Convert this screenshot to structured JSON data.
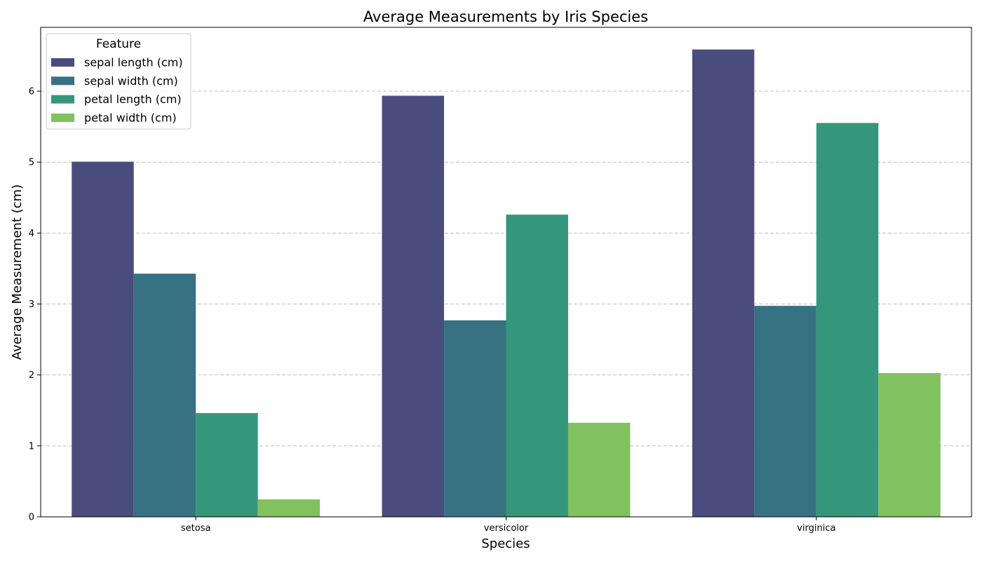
{
  "chart_data": {
    "type": "bar",
    "title": "Average Measurements by Iris Species",
    "xlabel": "Species",
    "ylabel": "Average Measurement (cm)",
    "categories": [
      "setosa",
      "versicolor",
      "virginica"
    ],
    "ylim": [
      0,
      6.9
    ],
    "yticks": [
      0,
      1,
      2,
      3,
      4,
      5,
      6
    ],
    "grid": "y-dashed",
    "legend": {
      "title": "Feature",
      "placement": "top-left"
    },
    "series": [
      {
        "name": "sepal length (cm)",
        "color": "#4a4c7e",
        "values": [
          5.006,
          5.936,
          6.588
        ]
      },
      {
        "name": "sepal width (cm)",
        "color": "#367282",
        "values": [
          3.428,
          2.77,
          2.974
        ]
      },
      {
        "name": "petal length (cm)",
        "color": "#34977c",
        "values": [
          1.462,
          4.26,
          5.552
        ]
      },
      {
        "name": "petal width (cm)",
        "color": "#81c160",
        "values": [
          0.246,
          1.326,
          2.026
        ]
      }
    ]
  }
}
